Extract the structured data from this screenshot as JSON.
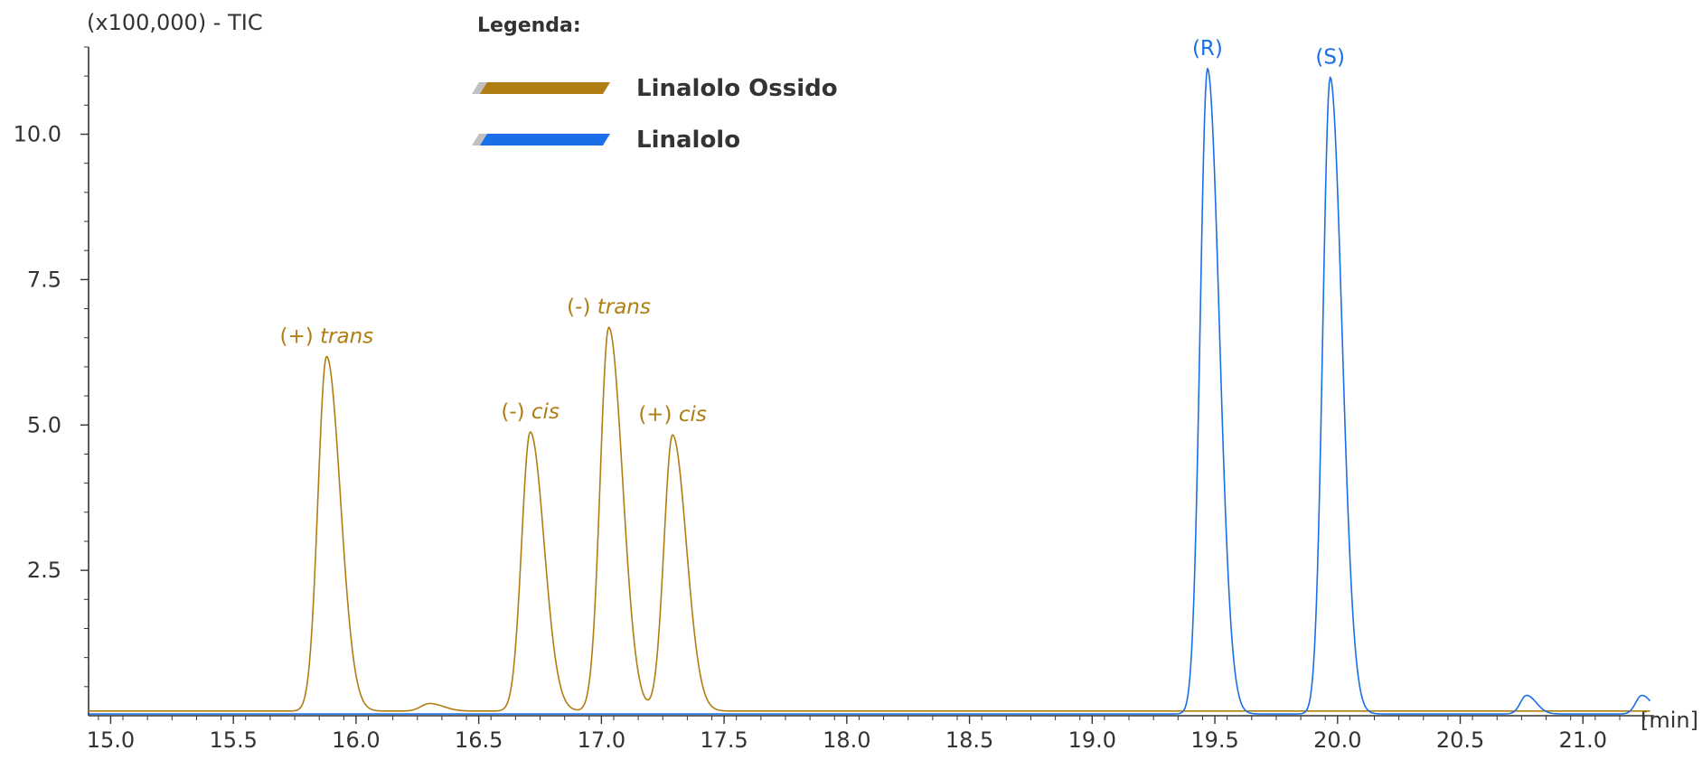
{
  "chart_data": {
    "type": "line",
    "title": "",
    "ylabel": "(x100,000) - TIC",
    "xlabel": "[min]",
    "xlim": [
      14.91,
      21.29
    ],
    "ylim": [
      0,
      11.5
    ],
    "x_ticks": [
      15.0,
      15.5,
      16.0,
      16.5,
      17.0,
      17.5,
      18.0,
      18.5,
      19.0,
      19.5,
      20.0,
      20.5,
      21.0
    ],
    "x_tick_labels": [
      "15.0",
      "15.5",
      "16.0",
      "16.5",
      "17.0",
      "17.5",
      "18.0",
      "18.5",
      "19.0",
      "19.5",
      "20.0",
      "20.5",
      "21.0"
    ],
    "y_ticks": [
      2.5,
      5.0,
      7.5,
      10.0
    ],
    "y_tick_labels": [
      "2.5",
      "5.0",
      "7.5",
      "10.0"
    ],
    "grid": false,
    "legend": {
      "title": "Legenda:",
      "position": "top-center"
    },
    "series": [
      {
        "name": "Linalolo Ossido",
        "color": "#b07d12",
        "baseline": 0.08,
        "peaks": [
          {
            "x": 15.88,
            "height": 6.1,
            "width": 0.035
          },
          {
            "x": 16.3,
            "height": 0.13,
            "width": 0.035
          },
          {
            "x": 16.71,
            "height": 4.8,
            "width": 0.035
          },
          {
            "x": 17.03,
            "height": 6.6,
            "width": 0.035
          },
          {
            "x": 17.29,
            "height": 4.75,
            "width": 0.035
          }
        ]
      },
      {
        "name": "Linalolo",
        "color": "#1a6ee8",
        "baseline": 0.03,
        "peaks": [
          {
            "x": 19.47,
            "height": 11.1,
            "width": 0.03
          },
          {
            "x": 19.97,
            "height": 10.95,
            "width": 0.03
          },
          {
            "x": 20.77,
            "height": 0.32,
            "width": 0.025
          },
          {
            "x": 21.24,
            "height": 0.32,
            "width": 0.025
          }
        ]
      }
    ],
    "annotations": [
      {
        "series": 0,
        "x": 15.88,
        "prefix": "(+)",
        "label": "trans"
      },
      {
        "series": 0,
        "x": 16.71,
        "prefix": "(-)",
        "label": "cis"
      },
      {
        "series": 0,
        "x": 17.03,
        "prefix": "(-)",
        "label": "trans"
      },
      {
        "series": 0,
        "x": 17.29,
        "prefix": "(+)",
        "label": "cis"
      },
      {
        "series": 1,
        "x": 19.47,
        "prefix": "(R)",
        "label": ""
      },
      {
        "series": 1,
        "x": 19.97,
        "prefix": "(S)",
        "label": ""
      }
    ]
  }
}
